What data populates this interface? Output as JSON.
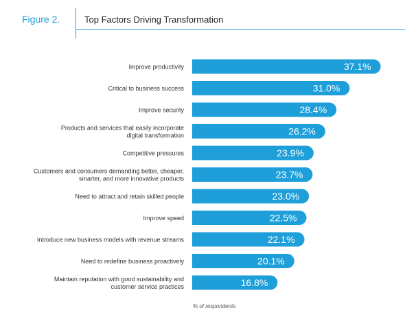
{
  "figure": {
    "label": "Figure 2.",
    "title": "Top Factors Driving Transformation",
    "footnote": "% of respondents"
  },
  "colors": {
    "bar": "#1e9fd9",
    "accent": "#1e9fd9",
    "bar_text": "#ffffff",
    "label_text": "#333333"
  },
  "chart_data": {
    "type": "bar",
    "orientation": "horizontal",
    "categories": [
      [
        "Improve productivity"
      ],
      [
        "Critical to business success"
      ],
      [
        "Improve security"
      ],
      [
        "Products and services that easily incorporate",
        "digital transformation"
      ],
      [
        "Competitive pressures"
      ],
      [
        "Customers and consumers demanding better, cheaper,",
        "smarter, and more innovative products"
      ],
      [
        "Need to attract and retain skilled people"
      ],
      [
        "Improve speed"
      ],
      [
        "Introduce new business models with revenue streams"
      ],
      [
        "Need to redefine business proactively"
      ],
      [
        "Maintain reputation with good sustainability and",
        "customer service practices"
      ]
    ],
    "values": [
      37.1,
      31.0,
      28.4,
      26.2,
      23.9,
      23.7,
      23.0,
      22.5,
      22.1,
      20.1,
      16.8
    ],
    "value_labels": [
      "37.1%",
      "31.0%",
      "28.4%",
      "26.2%",
      "23.9%",
      "23.7%",
      "23.0%",
      "22.5%",
      "22.1%",
      "20.1%",
      "16.8%"
    ],
    "xlabel": "% of respondents",
    "ylabel": "",
    "xlim": [
      0,
      40
    ],
    "grid": false,
    "legend": "none"
  }
}
